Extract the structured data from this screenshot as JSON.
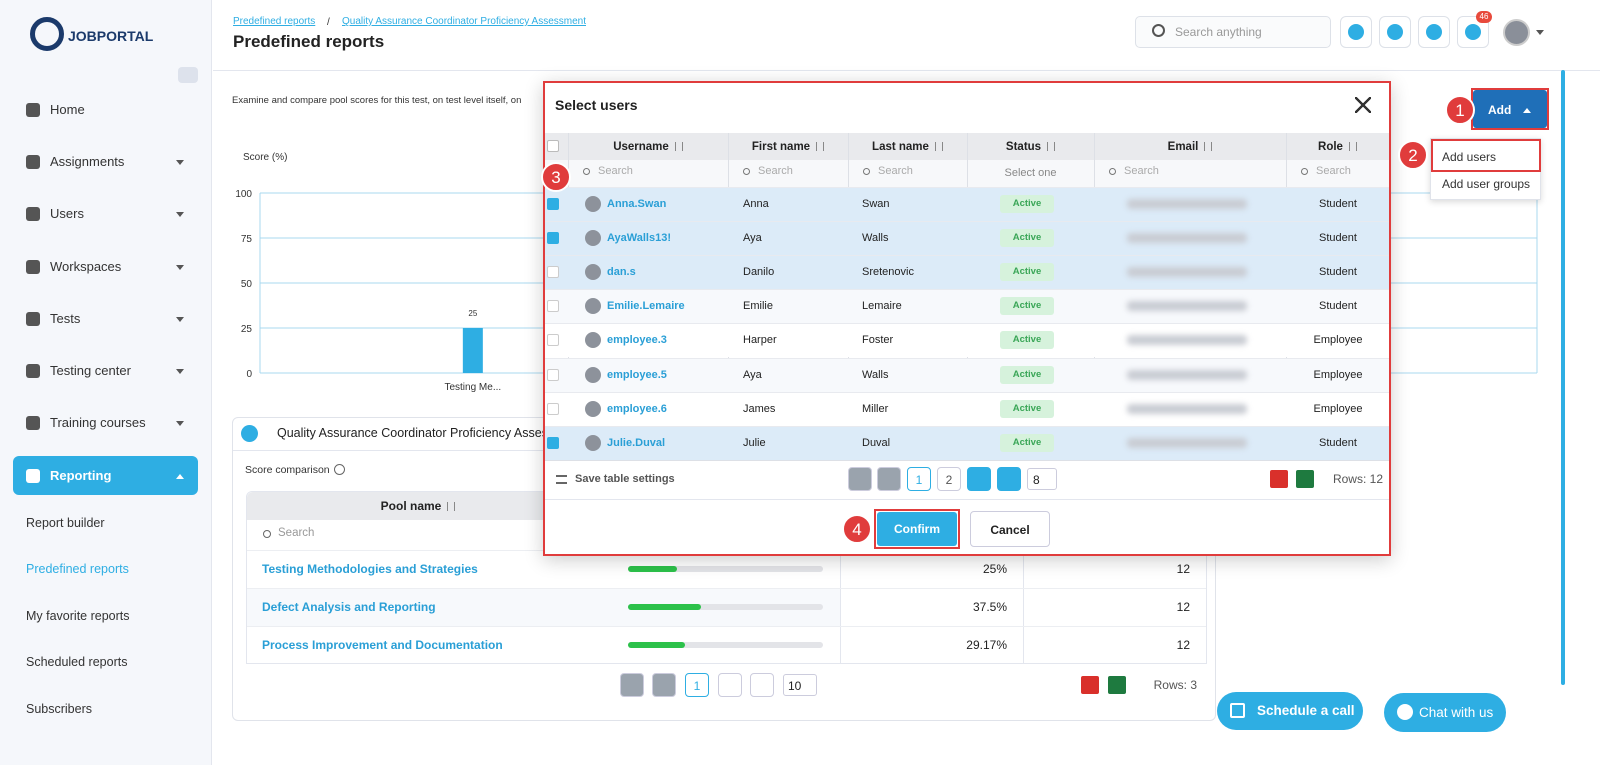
{
  "sidebar": {
    "logo": "JOBPORTAL",
    "nav": [
      "Home",
      "Assignments",
      "Users",
      "Workspaces",
      "Tests",
      "Testing center",
      "Training courses",
      "Reporting"
    ],
    "sub": [
      "Report builder",
      "Predefined reports",
      "My favorite reports",
      "Scheduled reports",
      "Subscribers"
    ]
  },
  "header": {
    "breadcrumb": [
      "Predefined reports",
      "Quality Assurance Coordinator Proficiency Assessment"
    ],
    "separator": "/",
    "title": "Predefined reports",
    "search": "Search anything",
    "notifications": 46
  },
  "page": {
    "description": "Examine and compare pool scores for this test, on test level itself,  on",
    "add": "Add",
    "add_menu": [
      "Add users",
      "Add user groups"
    ]
  },
  "chart_data": {
    "type": "bar",
    "ylabel": "Score (%)",
    "categories": [
      "Testing Me...",
      null,
      null
    ],
    "values": [
      25,
      null,
      null
    ],
    "color": "#2eaee3",
    "ylim": [
      0,
      100
    ],
    "yticks": [
      0,
      25,
      50,
      75,
      100
    ],
    "grid": true
  },
  "pool_card": {
    "title": "Quality Assurance Coordinator Proficiency Assessm",
    "subtitle": "Score comparison",
    "column": "Pool name",
    "search": "Search",
    "rows": [
      {
        "name": "Testing Methodologies and Strategies",
        "score": 25,
        "score_label": "25%",
        "count": 12
      },
      {
        "name": "Defect Analysis and Reporting",
        "score": 37.5,
        "score_label": "37.5%",
        "count": 12
      },
      {
        "name": "Process Improvement and Documentation",
        "score": 29.17,
        "score_label": "29.17%",
        "count": 12
      }
    ],
    "page": 1,
    "per_page": 10,
    "rows_total": "Rows: 3"
  },
  "modal": {
    "title": "Select users",
    "columns": [
      "Username",
      "First name",
      "Last name",
      "Status",
      "Email",
      "Role"
    ],
    "search": "Search",
    "status_filter": "Select one",
    "rows": [
      [
        "Anna.Swan",
        "Anna",
        "Swan",
        "Active",
        "Student",
        true
      ],
      [
        "AyaWalls13!",
        "Aya",
        "Walls",
        "Active",
        "Student",
        true
      ],
      [
        "dan.s",
        "Danilo",
        "Sretenovic",
        "Active",
        "Student",
        false
      ],
      [
        "Emilie.Lemaire",
        "Emilie",
        "Lemaire",
        "Active",
        "Student",
        false
      ],
      [
        "employee.3",
        "Harper",
        "Foster",
        "Active",
        "Employee",
        false
      ],
      [
        "employee.5",
        "Aya",
        "Walls",
        "Active",
        "Employee",
        false
      ],
      [
        "employee.6",
        "James",
        "Miller",
        "Active",
        "Employee",
        false
      ],
      [
        "Julie.Duval",
        "Julie",
        "Duval",
        "Active",
        "Student",
        true
      ]
    ],
    "save": "Save table settings",
    "pages": [
      1,
      2
    ],
    "per_page": 8,
    "rows_total": "Rows: 12",
    "confirm": "Confirm",
    "cancel": "Cancel"
  },
  "steps": [
    1,
    2,
    3,
    4
  ],
  "buttons": {
    "schedule": "Schedule a call",
    "chat": "Chat with us"
  }
}
